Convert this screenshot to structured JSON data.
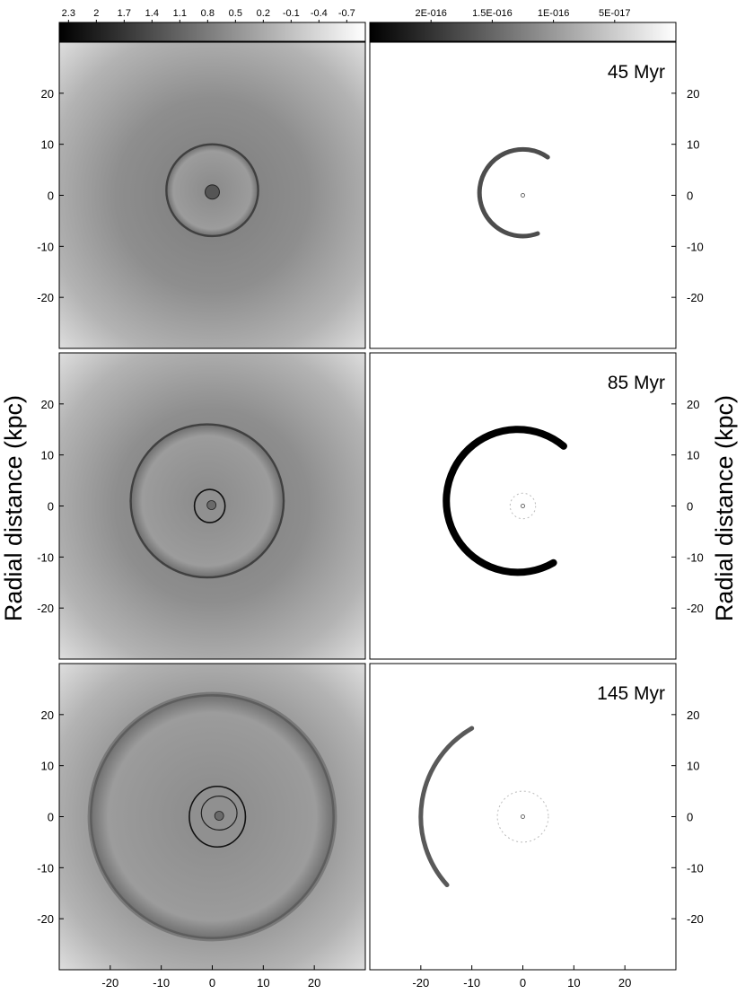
{
  "chart_data": {
    "type": "heatmap",
    "layout": "3 rows x 2 columns",
    "row_labels": [
      "45 Myr",
      "85 Myr",
      "145 Myr"
    ],
    "ylabel_left": "Radial distance (kpc)",
    "ylabel_right": "Radial distance (kpc)",
    "x_ticks": [
      -20,
      -10,
      0,
      10,
      20
    ],
    "y_ticks": [
      20,
      10,
      0,
      -10,
      -20
    ],
    "xlim": [
      -30,
      30
    ],
    "ylim": [
      -30,
      30
    ],
    "colorbars": [
      {
        "panel": "left",
        "tick_labels": [
          "2.3",
          "2",
          "1.7",
          "1.4",
          "1.1",
          "0.8",
          "0.5",
          "0.2",
          "-0.1",
          "-0.4",
          "-0.7"
        ],
        "range": [
          2.4,
          -0.9
        ],
        "colormap": "black to white"
      },
      {
        "panel": "right",
        "tick_labels": [
          "2E-016",
          "1.5E-016",
          "1E-016",
          "5E-017"
        ],
        "tick_values": [
          2e-16,
          1.5e-16,
          1e-16,
          5e-17
        ],
        "range": [
          2.5e-16,
          0
        ],
        "colormap": "black to white"
      }
    ],
    "panels": [
      {
        "time": "45 Myr",
        "left": {
          "bubble_radius": 9,
          "bubble_center": [
            0,
            1
          ],
          "core_radius": 1.4
        },
        "right": {
          "shell_radius": 8.5,
          "shell_center": [
            0,
            0.5
          ],
          "arc_from_deg": 55,
          "arc_to_deg": 290,
          "intensity": 0.7
        }
      },
      {
        "time": "85 Myr",
        "left": {
          "bubble_radius": 15,
          "bubble_center": [
            -1,
            1
          ],
          "inner_radius": 3,
          "inner_center": [
            -0.5,
            0
          ]
        },
        "right": {
          "shell_radius": 14,
          "shell_center": [
            -1,
            1
          ],
          "arc_from_deg": 50,
          "arc_to_deg": 300,
          "intensity": 1.0,
          "inner_ring_radius": 2.5
        }
      },
      {
        "time": "145 Myr",
        "left": {
          "bubble_radius": 24,
          "bubble_center": [
            0,
            0
          ],
          "inner_radius": 5.5,
          "inner_center": [
            1,
            0
          ],
          "second_inner_radius": 3.5
        },
        "right": {
          "shell_radius": 20,
          "shell_center": [
            0,
            0
          ],
          "arc_from_deg": 120,
          "arc_to_deg": 222,
          "intensity": 0.65,
          "inner_ring_radius": 5
        }
      }
    ]
  }
}
